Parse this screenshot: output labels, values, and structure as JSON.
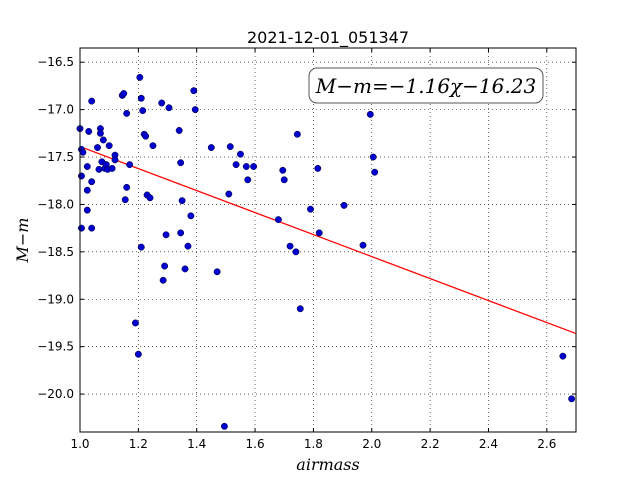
{
  "chart_data": {
    "type": "scatter",
    "title": "2021-12-01_051347",
    "xlabel": "airmass",
    "ylabel": "M−m",
    "annotation": "M−m=−1.16χ−16.23",
    "xlim": [
      1.0,
      2.7
    ],
    "ylim": [
      -20.4,
      -16.35
    ],
    "y_inverted": true,
    "grid": true,
    "x_ticks": [
      1.0,
      1.2,
      1.4,
      1.6,
      1.8,
      2.0,
      2.2,
      2.4,
      2.6
    ],
    "x_tick_labels": [
      "1.0",
      "1.2",
      "1.4",
      "1.6",
      "1.8",
      "2.0",
      "2.2",
      "2.4",
      "2.6"
    ],
    "y_ticks": [
      -16.5,
      -17.0,
      -17.5,
      -18.0,
      -18.5,
      -19.0,
      -19.5,
      -20.0
    ],
    "y_tick_labels": [
      "−16.5",
      "−17.0",
      "−17.5",
      "−18.0",
      "−18.5",
      "−19.0",
      "−19.5",
      "−20.0"
    ],
    "colors": {
      "points": "#0000cc",
      "fit": "#ff0000"
    },
    "fit": {
      "slope": -1.16,
      "intercept": -16.23,
      "x_range": [
        1.0,
        2.7
      ]
    },
    "points": [
      [
        1.0,
        -17.2
      ],
      [
        1.005,
        -17.42
      ],
      [
        1.005,
        -17.7
      ],
      [
        1.005,
        -18.25
      ],
      [
        1.01,
        -17.45
      ],
      [
        1.025,
        -17.6
      ],
      [
        1.025,
        -17.85
      ],
      [
        1.025,
        -18.06
      ],
      [
        1.03,
        -17.23
      ],
      [
        1.04,
        -16.91
      ],
      [
        1.04,
        -17.76
      ],
      [
        1.04,
        -18.25
      ],
      [
        1.06,
        -17.4
      ],
      [
        1.065,
        -17.63
      ],
      [
        1.07,
        -17.2
      ],
      [
        1.07,
        -17.25
      ],
      [
        1.075,
        -17.55
      ],
      [
        1.08,
        -17.32
      ],
      [
        1.085,
        -17.62
      ],
      [
        1.09,
        -17.58
      ],
      [
        1.095,
        -17.63
      ],
      [
        1.1,
        -17.38
      ],
      [
        1.11,
        -17.62
      ],
      [
        1.12,
        -17.48
      ],
      [
        1.12,
        -17.53
      ],
      [
        1.145,
        -16.85
      ],
      [
        1.15,
        -16.83
      ],
      [
        1.155,
        -17.95
      ],
      [
        1.16,
        -17.82
      ],
      [
        1.16,
        -17.04
      ],
      [
        1.17,
        -17.58
      ],
      [
        1.19,
        -19.25
      ],
      [
        1.2,
        -19.58
      ],
      [
        1.205,
        -16.66
      ],
      [
        1.21,
        -18.45
      ],
      [
        1.21,
        -16.88
      ],
      [
        1.215,
        -17.01
      ],
      [
        1.22,
        -17.26
      ],
      [
        1.225,
        -17.28
      ],
      [
        1.23,
        -17.9
      ],
      [
        1.24,
        -17.93
      ],
      [
        1.25,
        -17.38
      ],
      [
        1.28,
        -16.93
      ],
      [
        1.285,
        -18.8
      ],
      [
        1.29,
        -18.65
      ],
      [
        1.295,
        -18.32
      ],
      [
        1.305,
        -16.98
      ],
      [
        1.34,
        -17.22
      ],
      [
        1.345,
        -18.3
      ],
      [
        1.345,
        -17.56
      ],
      [
        1.35,
        -17.96
      ],
      [
        1.36,
        -18.68
      ],
      [
        1.37,
        -18.44
      ],
      [
        1.38,
        -18.12
      ],
      [
        1.39,
        -16.8
      ],
      [
        1.395,
        -17.0
      ],
      [
        1.45,
        -17.4
      ],
      [
        1.47,
        -18.71
      ],
      [
        1.495,
        -20.34
      ],
      [
        1.51,
        -17.89
      ],
      [
        1.515,
        -17.39
      ],
      [
        1.535,
        -17.58
      ],
      [
        1.55,
        -17.47
      ],
      [
        1.57,
        -17.6
      ],
      [
        1.575,
        -17.74
      ],
      [
        1.595,
        -17.6
      ],
      [
        1.68,
        -18.16
      ],
      [
        1.695,
        -17.64
      ],
      [
        1.7,
        -17.74
      ],
      [
        1.72,
        -18.44
      ],
      [
        1.74,
        -18.5
      ],
      [
        1.745,
        -17.26
      ],
      [
        1.755,
        -19.1
      ],
      [
        1.79,
        -18.05
      ],
      [
        1.815,
        -17.62
      ],
      [
        1.82,
        -18.3
      ],
      [
        1.905,
        -18.01
      ],
      [
        1.97,
        -18.43
      ],
      [
        1.995,
        -17.05
      ],
      [
        2.005,
        -17.5
      ],
      [
        2.01,
        -17.66
      ],
      [
        2.655,
        -19.6
      ],
      [
        2.685,
        -20.05
      ]
    ]
  }
}
